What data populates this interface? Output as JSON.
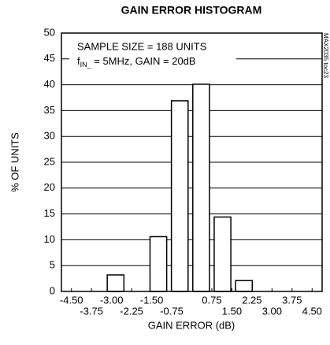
{
  "chart_data": {
    "type": "histogram",
    "title": "GAIN ERROR HISTOGRAM",
    "xlabel": "GAIN ERROR (dB)",
    "ylabel": "% OF UNITS",
    "annotation": "SAMPLE SIZE = 188 UNITS",
    "annotation_2": [
      "f",
      "IN_",
      " = 5MHz, GAIN = 20dB"
    ],
    "side_label": "MAX2035 toc23",
    "bins": [
      -3.25,
      -2.45,
      -1.65,
      -0.85,
      -0.05,
      0.75,
      1.55,
      2.35
    ],
    "values": [
      3.2,
      0,
      10.6,
      36.9,
      40.1,
      14.4,
      2.1
    ],
    "color": "#ffffff",
    "edge_color": "#000000",
    "xlim": [
      -4.875,
      4.875
    ],
    "xticks": [
      {
        "value": -4.5,
        "label": "-4.50"
      },
      -3.75,
      {
        "value": -3,
        "label": "-3.00"
      },
      -2.25,
      {
        "value": -1.5,
        "label": "-1.50"
      },
      -0.75,
      0.75,
      {
        "value": 1.5,
        "label": "1.50"
      },
      2.25,
      {
        "value": 3,
        "label": "3.00"
      },
      3.75,
      {
        "value": 4.5,
        "label": "4.50"
      }
    ],
    "ylim": [
      0,
      50
    ],
    "yticks": [
      0,
      5,
      10,
      15,
      20,
      25,
      30,
      35,
      40,
      45,
      50
    ],
    "grid": true
  }
}
